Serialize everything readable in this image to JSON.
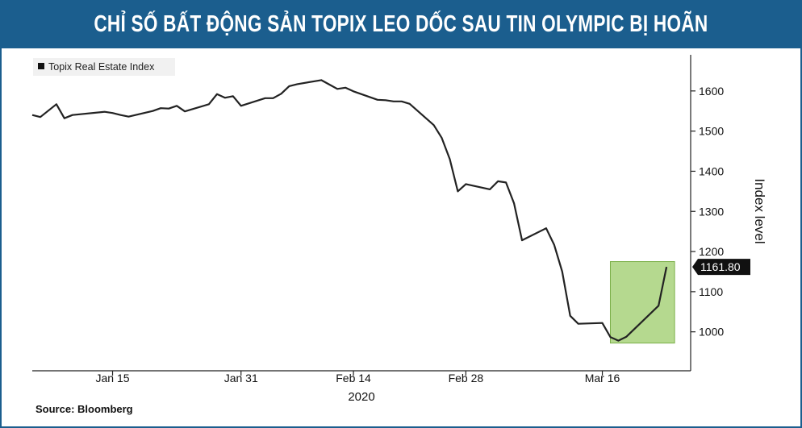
{
  "banner": {
    "title": "CHỈ SỐ BẤT ĐỘNG SẢN TOPIX LEO DỐC SAU TIN OLYMPIC BỊ HOÃN",
    "bg_color": "#1b5e8e",
    "text_color": "#ffffff"
  },
  "source_text": "Source: Bloomberg",
  "chart_data": {
    "type": "line",
    "title": "",
    "xlabel": "2020",
    "ylabel": "Index level",
    "ylim": [
      903,
      1690
    ],
    "yticks": [
      1000,
      1100,
      1200,
      1300,
      1400,
      1500,
      1600
    ],
    "grid": false,
    "legend": {
      "position": "top-left",
      "entries": [
        "Topix Real Estate Index"
      ]
    },
    "xticks": [
      {
        "label": "Jan 15",
        "date": "2020-01-15"
      },
      {
        "label": "Jan 31",
        "date": "2020-01-31"
      },
      {
        "label": "Feb 14",
        "date": "2020-02-14"
      },
      {
        "label": "Feb 28",
        "date": "2020-02-28"
      },
      {
        "label": "Mar 16",
        "date": "2020-03-16"
      }
    ],
    "xlim": [
      "2020-01-05",
      "2020-03-27"
    ],
    "series": [
      {
        "name": "Topix Real Estate Index",
        "color": "#222222",
        "points": [
          [
            "2020-01-05",
            1540
          ],
          [
            "2020-01-06",
            1535
          ],
          [
            "2020-01-08",
            1567
          ],
          [
            "2020-01-09",
            1532
          ],
          [
            "2020-01-10",
            1540
          ],
          [
            "2020-01-14",
            1548
          ],
          [
            "2020-01-15",
            1545
          ],
          [
            "2020-01-16",
            1540
          ],
          [
            "2020-01-17",
            1536
          ],
          [
            "2020-01-20",
            1550
          ],
          [
            "2020-01-21",
            1557
          ],
          [
            "2020-01-22",
            1556
          ],
          [
            "2020-01-23",
            1563
          ],
          [
            "2020-01-24",
            1549
          ],
          [
            "2020-01-27",
            1567
          ],
          [
            "2020-01-28",
            1592
          ],
          [
            "2020-01-29",
            1583
          ],
          [
            "2020-01-30",
            1587
          ],
          [
            "2020-01-31",
            1563
          ],
          [
            "2020-02-03",
            1582
          ],
          [
            "2020-02-04",
            1582
          ],
          [
            "2020-02-05",
            1593
          ],
          [
            "2020-02-06",
            1612
          ],
          [
            "2020-02-07",
            1617
          ],
          [
            "2020-02-10",
            1627
          ],
          [
            "2020-02-11",
            1616
          ],
          [
            "2020-02-12",
            1605
          ],
          [
            "2020-02-13",
            1608
          ],
          [
            "2020-02-14",
            1599
          ],
          [
            "2020-02-17",
            1578
          ],
          [
            "2020-02-18",
            1577
          ],
          [
            "2020-02-19",
            1574
          ],
          [
            "2020-02-20",
            1574
          ],
          [
            "2020-02-21",
            1568
          ],
          [
            "2020-02-24",
            1515
          ],
          [
            "2020-02-25",
            1483
          ],
          [
            "2020-02-26",
            1430
          ],
          [
            "2020-02-27",
            1350
          ],
          [
            "2020-02-28",
            1368
          ],
          [
            "2020-03-02",
            1355
          ],
          [
            "2020-03-03",
            1375
          ],
          [
            "2020-03-04",
            1372
          ],
          [
            "2020-03-05",
            1320
          ],
          [
            "2020-03-06",
            1228
          ],
          [
            "2020-03-09",
            1258
          ],
          [
            "2020-03-10",
            1217
          ],
          [
            "2020-03-11",
            1150
          ],
          [
            "2020-03-12",
            1040
          ],
          [
            "2020-03-13",
            1020
          ],
          [
            "2020-03-16",
            1022
          ],
          [
            "2020-03-17",
            987
          ],
          [
            "2020-03-18",
            978
          ],
          [
            "2020-03-19",
            988
          ],
          [
            "2020-03-23",
            1065
          ],
          [
            "2020-03-24",
            1161.8
          ]
        ]
      }
    ],
    "last_value_label": "1161.80",
    "highlight": {
      "x_range": [
        "2020-03-17",
        "2020-03-25"
      ],
      "y_range": [
        972,
        1175
      ],
      "color": "#9ccc6a"
    }
  }
}
